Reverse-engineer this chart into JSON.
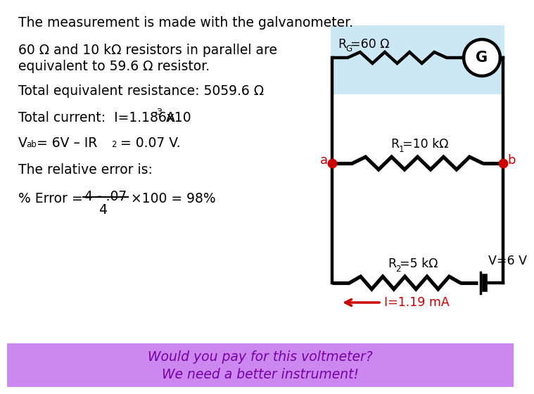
{
  "title_line": "The measurement is made with the galvanometer.",
  "line1": "60 Ω and 10 kΩ resistors in parallel are",
  "line2": "equivalent to 59.6 Ω resistor.",
  "line3": "Total equivalent resistance: 5059.6 Ω",
  "line4_prefix": "Total current:  I=1.186x10",
  "line4_exp": "-3",
  "line4_suffix": " A",
  "line6": "The relative error is:",
  "rg_label": "R",
  "rg_sub": "G",
  "rg_val": "=60 Ω",
  "r1_label": "R",
  "r1_sub": "1",
  "r1_val": "=10 kΩ",
  "r2_label": "R",
  "r2_sub": "2",
  "r2_val": "=5 kΩ",
  "g_label": "G",
  "node_a": "a",
  "node_b": "b",
  "v_label": "V=6 V",
  "i_label": "I=1.19 mA",
  "footer_line1": "Would you pay for this voltmeter?",
  "footer_line2": "We need a better instrument!",
  "bg_color": "#ffffff",
  "footer_bg": "#cc88ee",
  "footer_text_color": "#7700aa",
  "circuit_bg": "#cce8f4",
  "red_color": "#cc0000",
  "black_color": "#000000",
  "circuit_lw": 3.2,
  "font_size_main": 13.5,
  "font_size_circuit": 12.5
}
